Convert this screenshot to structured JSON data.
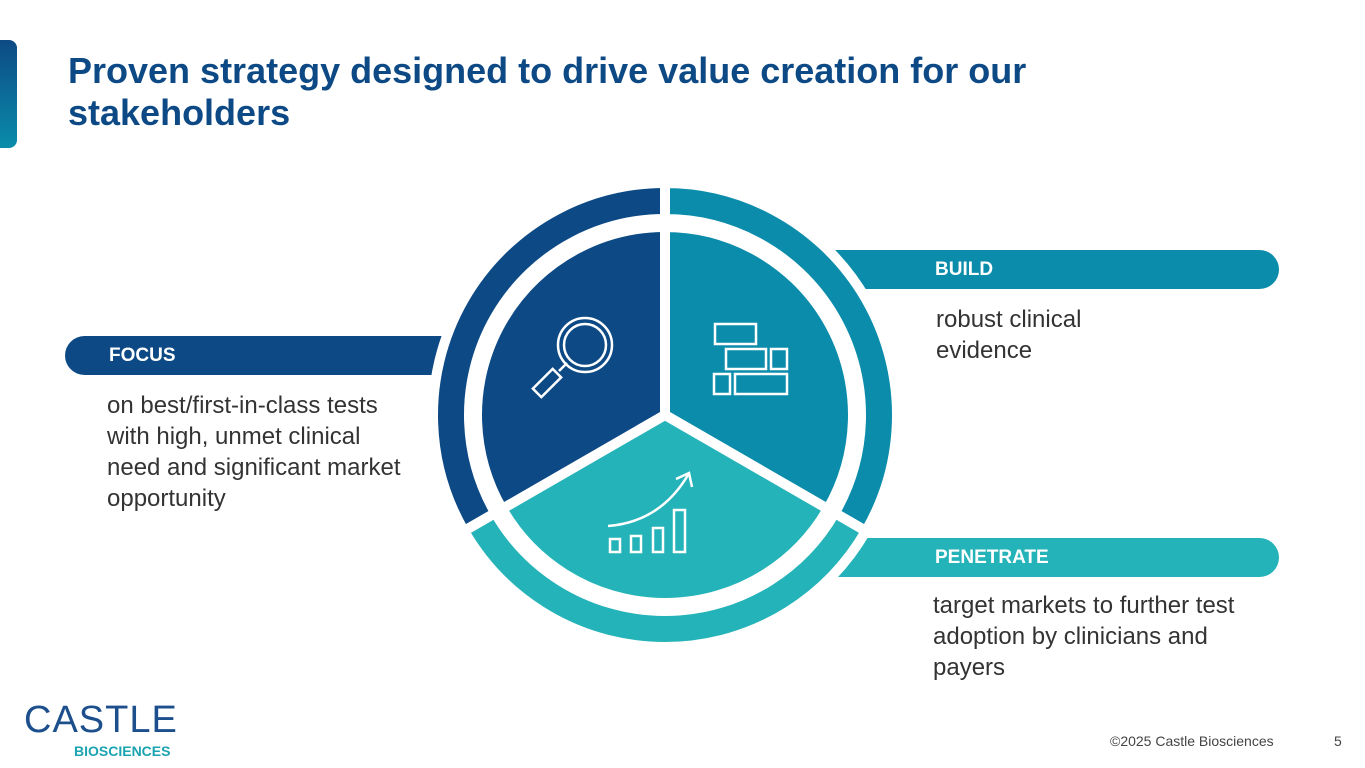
{
  "title": "Proven strategy designed to drive value creation for our stakeholders",
  "segments": [
    {
      "label": "FOCUS",
      "description": "on best/first-in-class tests with high, unmet clinical need and significant market opportunity",
      "icon": "magnifying-glass-icon",
      "color": "#0d4a85"
    },
    {
      "label": "BUILD",
      "description": "robust clinical evidence",
      "icon": "bricks-icon",
      "color": "#0a8caa"
    },
    {
      "label": "PENETRATE",
      "description": "target markets to further test adoption by clinicians and payers",
      "icon": "growth-chart-icon",
      "color": "#24b3b8"
    }
  ],
  "logo": {
    "main": "CASTLE",
    "sub": "BIOSCIENCES"
  },
  "footer": {
    "copyright": "©2025 Castle Biosciences",
    "page_number": "5"
  }
}
